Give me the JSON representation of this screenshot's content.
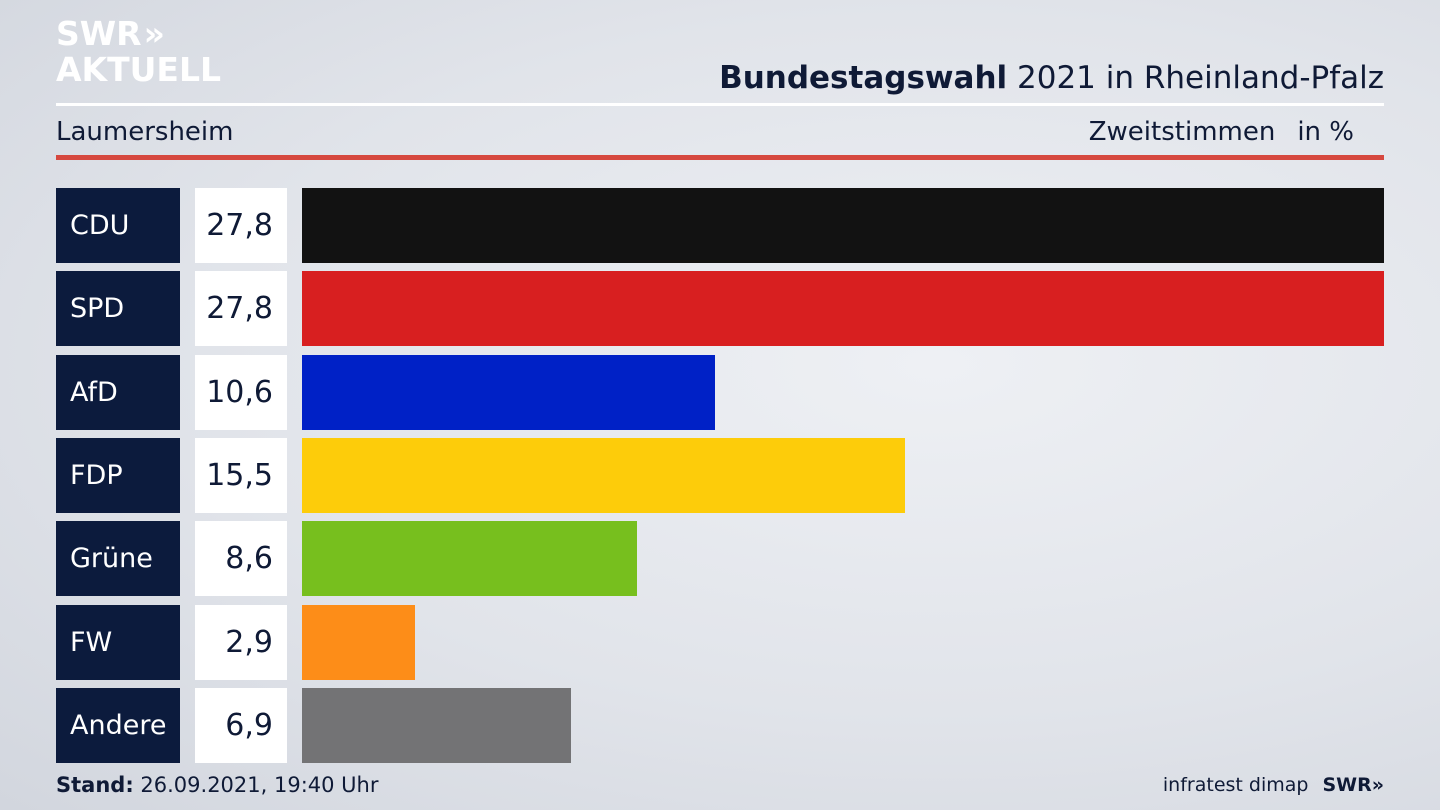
{
  "brand": {
    "logo_line1": "SWR",
    "logo_chevrons": "»",
    "logo_line2": "AKTUELL",
    "footer_logo": "SWR»"
  },
  "header": {
    "title_bold": "Bundestagswahl",
    "title_rest": " 2021 in Rheinland-Pfalz",
    "region": "Laumersheim",
    "measure": "Zweitstimmen",
    "unit": "in %"
  },
  "footer": {
    "stand_label": "Stand:",
    "stand_value": " 26.09.2021, 19:40 Uhr",
    "source": "infratest dimap"
  },
  "chart_data": {
    "type": "bar",
    "orientation": "horizontal",
    "categories": [
      "CDU",
      "SPD",
      "AfD",
      "FDP",
      "Grüne",
      "FW",
      "Andere"
    ],
    "values": [
      27.8,
      27.8,
      10.6,
      15.5,
      8.6,
      2.9,
      6.9
    ],
    "value_labels": [
      "27,8",
      "27,8",
      "10,6",
      "15,5",
      "8,6",
      "2,9",
      "6,9"
    ],
    "colors": [
      "#121212",
      "#d81f20",
      "#0021c6",
      "#fdcc0a",
      "#77bf1e",
      "#fd8d18",
      "#737375"
    ],
    "xlim": [
      0,
      27.8
    ],
    "grid": false,
    "legend": "none"
  }
}
